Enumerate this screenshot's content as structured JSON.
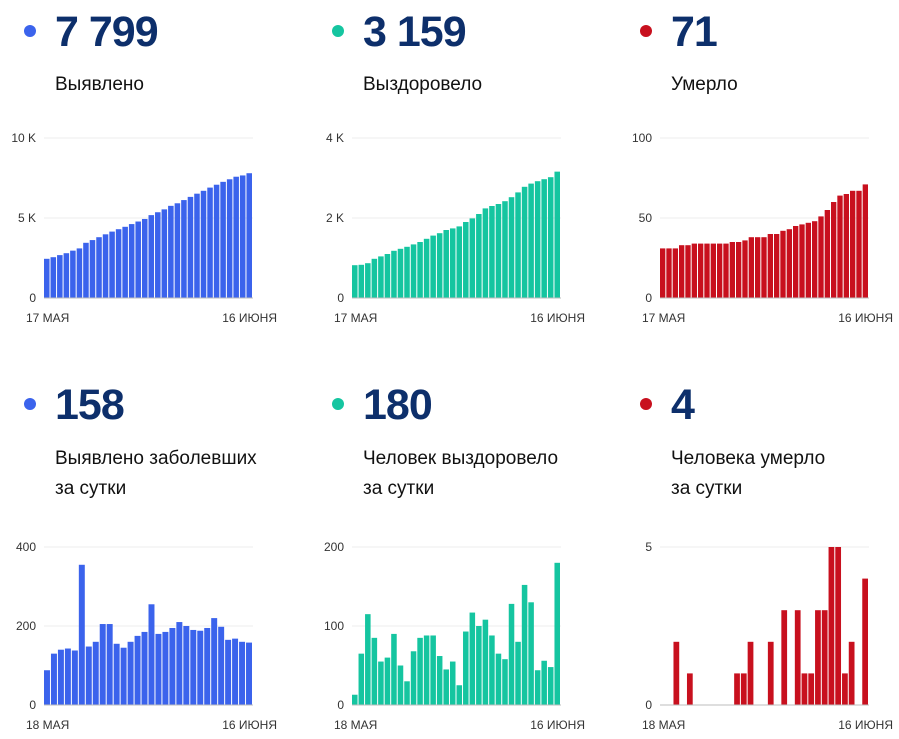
{
  "panels": [
    {
      "value": "7 799",
      "label_lines": [
        "Выявлено"
      ],
      "color": "#3b63ec",
      "chart_data": {
        "type": "bar",
        "title": "",
        "x_start_label": "17 МАЯ",
        "x_end_label": "16 ИЮНЯ",
        "yticks": [
          {
            "v": 0,
            "t": "0"
          },
          {
            "v": 5000,
            "t": "5 K"
          },
          {
            "v": 10000,
            "t": "10 K"
          }
        ],
        "ylim": [
          0,
          10000
        ],
        "values": [
          2450,
          2550,
          2680,
          2800,
          2960,
          3100,
          3450,
          3620,
          3800,
          3980,
          4150,
          4300,
          4450,
          4620,
          4780,
          4940,
          5180,
          5360,
          5540,
          5760,
          5920,
          6120,
          6320,
          6520,
          6700,
          6900,
          7080,
          7260,
          7420,
          7580,
          7660,
          7799
        ]
      }
    },
    {
      "value": "3 159",
      "label_lines": [
        "Выздоровело"
      ],
      "color": "#15c5a0",
      "chart_data": {
        "type": "bar",
        "title": "",
        "x_start_label": "17 МАЯ",
        "x_end_label": "16 ИЮНЯ",
        "yticks": [
          {
            "v": 0,
            "t": "0"
          },
          {
            "v": 2000,
            "t": "2 K"
          },
          {
            "v": 4000,
            "t": "4 K"
          }
        ],
        "ylim": [
          0,
          4000
        ],
        "values": [
          820,
          830,
          870,
          980,
          1040,
          1100,
          1180,
          1230,
          1280,
          1340,
          1400,
          1480,
          1560,
          1620,
          1700,
          1740,
          1790,
          1900,
          1990,
          2100,
          2240,
          2300,
          2350,
          2420,
          2520,
          2640,
          2780,
          2860,
          2920,
          2970,
          3020,
          3159
        ]
      }
    },
    {
      "value": "71",
      "label_lines": [
        "Умерло"
      ],
      "color": "#c8101e",
      "chart_data": {
        "type": "bar",
        "title": "",
        "x_start_label": "17 МАЯ",
        "x_end_label": "16 ИЮНЯ",
        "yticks": [
          {
            "v": 0,
            "t": "0"
          },
          {
            "v": 50,
            "t": "50"
          },
          {
            "v": 100,
            "t": "100"
          }
        ],
        "ylim": [
          0,
          100
        ],
        "values": [
          31,
          31,
          31,
          33,
          33,
          34,
          34,
          34,
          34,
          34,
          34,
          35,
          35,
          36,
          38,
          38,
          38,
          40,
          40,
          42,
          43,
          45,
          46,
          47,
          48,
          51,
          55,
          60,
          64,
          65,
          67,
          67,
          71
        ]
      }
    },
    {
      "value": "158",
      "label_lines": [
        "Выявлено заболевших",
        "за сутки"
      ],
      "color": "#3b63ec",
      "chart_data": {
        "type": "bar",
        "title": "",
        "x_start_label": "18 МАЯ",
        "x_end_label": "16 ИЮНЯ",
        "yticks": [
          {
            "v": 0,
            "t": "0"
          },
          {
            "v": 200,
            "t": "200"
          },
          {
            "v": 400,
            "t": "400"
          }
        ],
        "ylim": [
          0,
          400
        ],
        "values": [
          88,
          130,
          140,
          143,
          138,
          355,
          148,
          160,
          205,
          205,
          155,
          145,
          160,
          175,
          185,
          255,
          180,
          185,
          195,
          210,
          200,
          190,
          188,
          195,
          220,
          198,
          165,
          168,
          160,
          158
        ]
      }
    },
    {
      "value": "180",
      "label_lines": [
        "Человек выздоровело",
        "за сутки"
      ],
      "color": "#15c5a0",
      "chart_data": {
        "type": "bar",
        "title": "",
        "x_start_label": "18 МАЯ",
        "x_end_label": "16 ИЮНЯ",
        "yticks": [
          {
            "v": 0,
            "t": "0"
          },
          {
            "v": 100,
            "t": "100"
          },
          {
            "v": 200,
            "t": "200"
          }
        ],
        "ylim": [
          0,
          200
        ],
        "values": [
          13,
          65,
          115,
          85,
          55,
          60,
          90,
          50,
          30,
          68,
          85,
          88,
          88,
          62,
          45,
          55,
          25,
          93,
          117,
          100,
          108,
          88,
          65,
          58,
          128,
          80,
          152,
          130,
          44,
          56,
          48,
          180
        ]
      }
    },
    {
      "value": "4",
      "label_lines": [
        "Человека умерло",
        "за сутки"
      ],
      "color": "#c8101e",
      "chart_data": {
        "type": "bar",
        "title": "",
        "x_start_label": "18 МАЯ",
        "x_end_label": "16 ИЮНЯ",
        "yticks": [
          {
            "v": 0,
            "t": "0"
          },
          {
            "v": 5,
            "t": "5"
          }
        ],
        "ylim": [
          0,
          5
        ],
        "values": [
          0,
          0,
          2,
          0,
          1,
          0,
          0,
          0,
          0,
          0,
          0,
          1,
          1,
          2,
          0,
          0,
          2,
          0,
          3,
          0,
          3,
          1,
          1,
          3,
          3,
          5,
          5,
          1,
          2,
          0,
          4
        ]
      }
    }
  ]
}
